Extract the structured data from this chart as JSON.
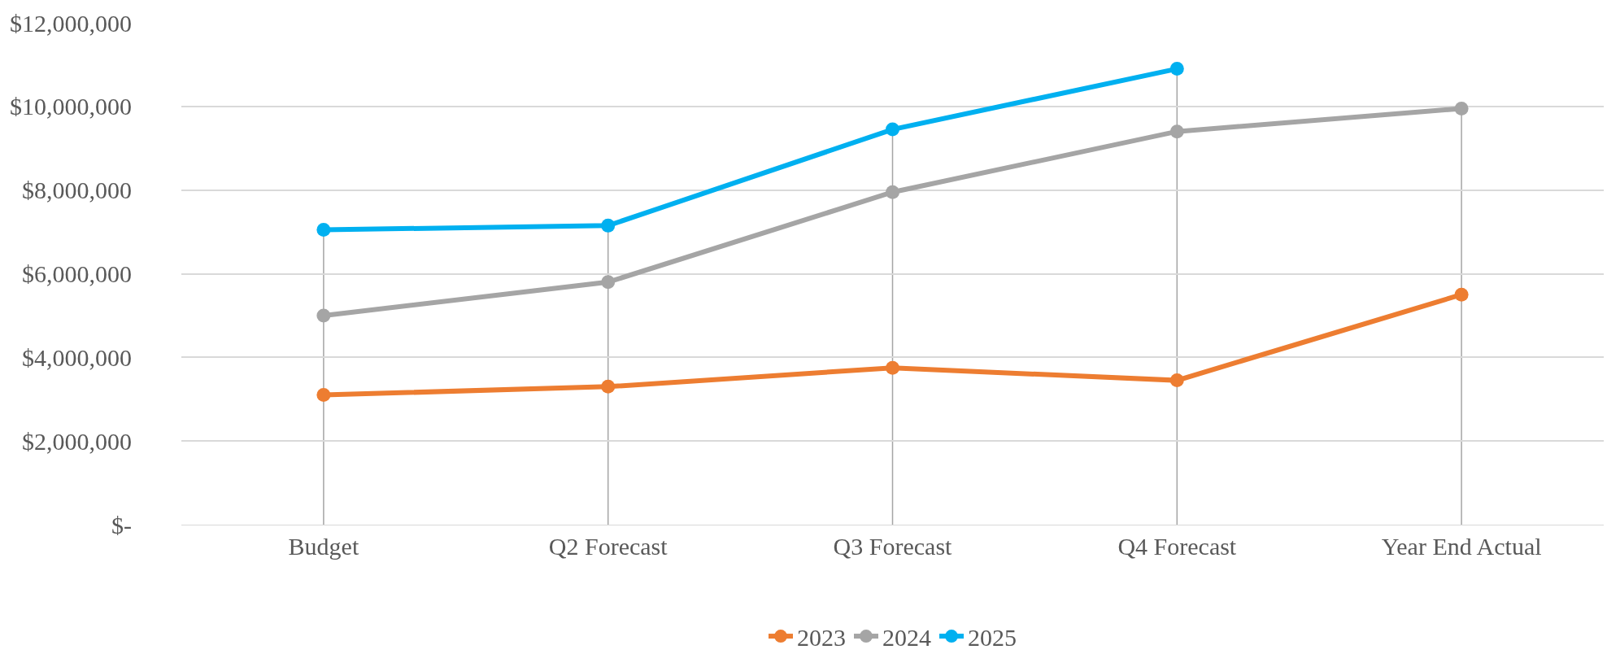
{
  "chart_data": {
    "type": "line",
    "categories": [
      "Budget",
      "Q2 Forecast",
      "Q3 Forecast",
      "Q4 Forecast",
      "Year End Actual"
    ],
    "series": [
      {
        "name": "2023",
        "color": "#ed7d31",
        "values": [
          3100000,
          3300000,
          3750000,
          3450000,
          5500000
        ]
      },
      {
        "name": "2024",
        "color": "#a5a5a5",
        "values": [
          5000000,
          5800000,
          7950000,
          9400000,
          9950000
        ]
      },
      {
        "name": "2025",
        "color": "#00b0f0",
        "values": [
          7050000,
          7150000,
          9450000,
          10900000,
          null
        ]
      }
    ],
    "ylim": [
      0,
      12000000
    ],
    "yticks": [
      {
        "value": 0,
        "label": "$-"
      },
      {
        "value": 2000000,
        "label": "$2,000,000"
      },
      {
        "value": 4000000,
        "label": "$4,000,000"
      },
      {
        "value": 6000000,
        "label": "$6,000,000"
      },
      {
        "value": 8000000,
        "label": "$8,000,000"
      },
      {
        "value": 10000000,
        "label": "$10,000,000"
      },
      {
        "value": 12000000,
        "label": "$12,000,000"
      }
    ],
    "ref_lines": [
      {
        "axis": "x",
        "value": "Budget",
        "color": "#a5a5a5"
      },
      {
        "axis": "x",
        "value": "Q2 Forecast",
        "color": "#a5a5a5"
      },
      {
        "axis": "x",
        "value": "Q3 Forecast",
        "color": "#a5a5a5"
      },
      {
        "axis": "x",
        "value": "Q4 Forecast",
        "color": "#a5a5a5"
      },
      {
        "axis": "x",
        "value": "Year End Actual",
        "color": "#a5a5a5"
      }
    ],
    "grid": "y",
    "legend": "bottom",
    "marker": "circle",
    "line_style": "solid"
  }
}
